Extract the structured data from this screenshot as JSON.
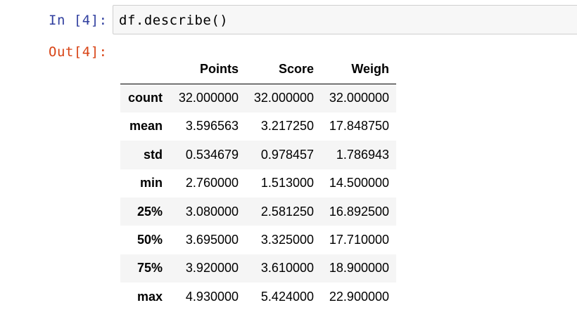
{
  "input_cell": {
    "prompt": "In [4]:",
    "code": "df.describe()"
  },
  "output_cell": {
    "prompt": "Out[4]:",
    "table": {
      "columns": [
        "Points",
        "Score",
        "Weigh"
      ],
      "rows": [
        {
          "label": "count",
          "values": [
            "32.000000",
            "32.000000",
            "32.000000"
          ]
        },
        {
          "label": "mean",
          "values": [
            "3.596563",
            "3.217250",
            "17.848750"
          ]
        },
        {
          "label": "std",
          "values": [
            "0.534679",
            "0.978457",
            "1.786943"
          ]
        },
        {
          "label": "min",
          "values": [
            "2.760000",
            "1.513000",
            "14.500000"
          ]
        },
        {
          "label": "25%",
          "values": [
            "3.080000",
            "2.581250",
            "16.892500"
          ]
        },
        {
          "label": "50%",
          "values": [
            "3.695000",
            "3.325000",
            "17.710000"
          ]
        },
        {
          "label": "75%",
          "values": [
            "3.920000",
            "3.610000",
            "18.900000"
          ]
        },
        {
          "label": "max",
          "values": [
            "4.930000",
            "5.424000",
            "22.900000"
          ]
        }
      ]
    }
  }
}
